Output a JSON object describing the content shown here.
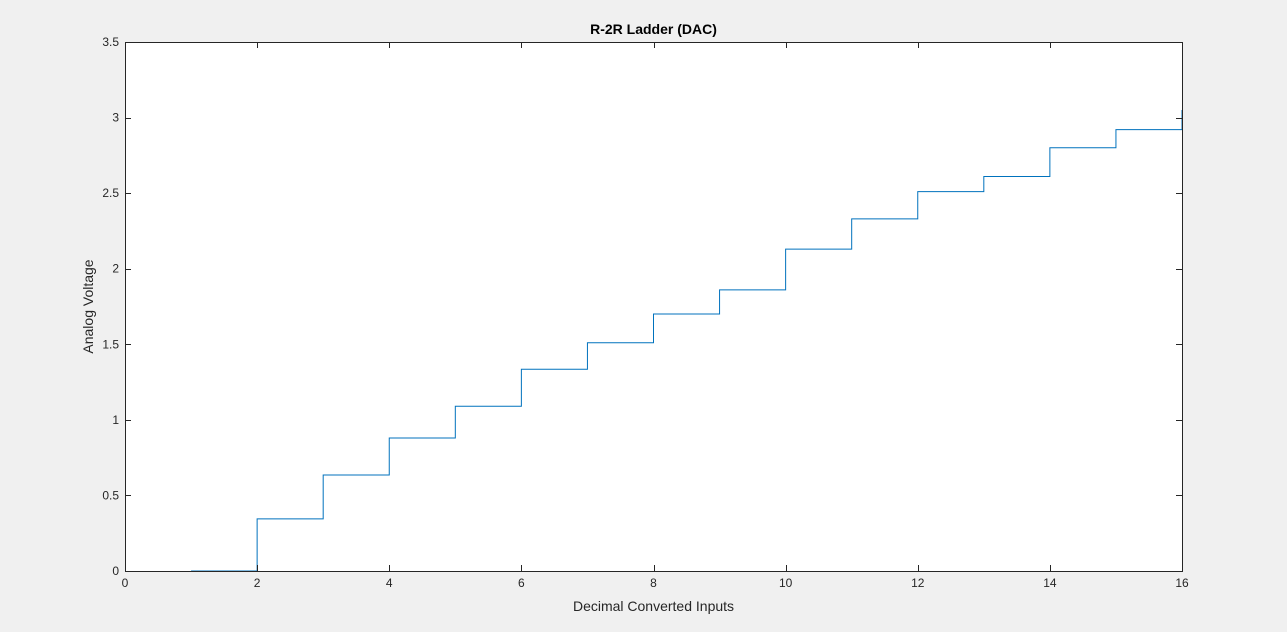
{
  "chart_data": {
    "type": "line",
    "style": "stairs",
    "title": "R-2R Ladder (DAC)",
    "xlabel": "Decimal Converted Inputs",
    "ylabel": "Analog Voltage",
    "xlim": [
      0,
      16
    ],
    "ylim": [
      0,
      3.5
    ],
    "x_ticks": [
      0,
      2,
      4,
      6,
      8,
      10,
      12,
      14,
      16
    ],
    "x_tick_labels": [
      "0",
      "2",
      "4",
      "6",
      "8",
      "10",
      "12",
      "14",
      "16"
    ],
    "y_ticks": [
      0,
      0.5,
      1,
      1.5,
      2,
      2.5,
      3,
      3.5
    ],
    "y_tick_labels": [
      "0",
      "0.5",
      "1",
      "1.5",
      "2",
      "2.5",
      "3",
      "3.5"
    ],
    "grid": false,
    "series": [
      {
        "color": "#0072bd",
        "x": [
          1,
          2,
          3,
          4,
          5,
          6,
          7,
          8,
          9,
          10,
          11,
          12,
          13,
          14,
          15,
          16
        ],
        "y": [
          0,
          0.345,
          0.635,
          0.88,
          1.09,
          1.335,
          1.51,
          1.7,
          1.86,
          2.13,
          2.33,
          2.51,
          2.61,
          2.8,
          2.92,
          3.05
        ]
      }
    ]
  }
}
